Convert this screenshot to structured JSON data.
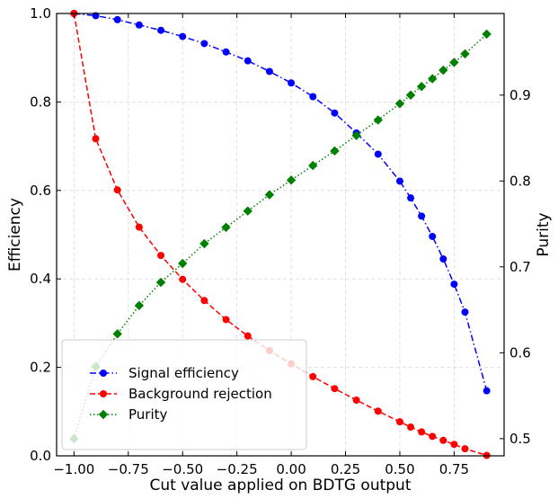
{
  "chart_data": {
    "type": "line",
    "xlabel": "Cut value applied on BDTG output",
    "ylabel": "Efficiency",
    "y2label": "Purity",
    "xlim": [
      -1.08,
      0.98
    ],
    "ylim": [
      0.0,
      1.0
    ],
    "y2lim": [
      0.48,
      0.995
    ],
    "grid": true,
    "legend_position": "lower-left",
    "x_ticks": [
      -1.0,
      -0.75,
      -0.5,
      -0.25,
      0.0,
      0.25,
      0.5,
      0.75
    ],
    "x_tick_labels": [
      "−1.00",
      "−0.75",
      "−0.50",
      "−0.25",
      "0.00",
      "0.25",
      "0.50",
      "0.75"
    ],
    "y_ticks": [
      0.0,
      0.2,
      0.4,
      0.6,
      0.8,
      1.0
    ],
    "y_tick_labels": [
      "0.0",
      "0.2",
      "0.4",
      "0.6",
      "0.8",
      "1.0"
    ],
    "y2_ticks": [
      0.5,
      0.6,
      0.7,
      0.8,
      0.9
    ],
    "y2_tick_labels": [
      "0.5",
      "0.6",
      "0.7",
      "0.8",
      "0.9"
    ],
    "series": [
      {
        "name": "Signal efficiency",
        "axis": "left",
        "color": "#0000ff",
        "line_style": "dashdot",
        "marker": "circle",
        "x": [
          -1.0,
          -0.9,
          -0.8,
          -0.7,
          -0.6,
          -0.5,
          -0.4,
          -0.3,
          -0.2,
          -0.1,
          0.0,
          0.1,
          0.2,
          0.3,
          0.4,
          0.5,
          0.55,
          0.6,
          0.65,
          0.7,
          0.75,
          0.8,
          0.9
        ],
        "values": [
          1.0,
          0.995,
          0.986,
          0.974,
          0.962,
          0.948,
          0.932,
          0.913,
          0.893,
          0.869,
          0.843,
          0.812,
          0.775,
          0.73,
          0.682,
          0.621,
          0.583,
          0.542,
          0.496,
          0.445,
          0.388,
          0.325,
          0.147
        ]
      },
      {
        "name": "Background rejection",
        "axis": "left",
        "color": "#ff0000",
        "line_style": "dashed",
        "marker": "circle",
        "x": [
          -1.0,
          -0.9,
          -0.8,
          -0.7,
          -0.6,
          -0.5,
          -0.4,
          -0.3,
          -0.2,
          -0.1,
          0.0,
          0.1,
          0.2,
          0.3,
          0.4,
          0.5,
          0.55,
          0.6,
          0.65,
          0.7,
          0.75,
          0.8,
          0.9
        ],
        "values": [
          1.0,
          0.717,
          0.601,
          0.517,
          0.453,
          0.399,
          0.351,
          0.308,
          0.271,
          0.238,
          0.208,
          0.179,
          0.152,
          0.126,
          0.101,
          0.077,
          0.065,
          0.054,
          0.044,
          0.035,
          0.026,
          0.016,
          0.001
        ]
      },
      {
        "name": "Purity",
        "axis": "right",
        "color": "#008000",
        "line_style": "dotted",
        "marker": "diamond",
        "x": [
          -1.0,
          -0.9,
          -0.8,
          -0.7,
          -0.6,
          -0.5,
          -0.4,
          -0.3,
          -0.2,
          -0.1,
          0.0,
          0.1,
          0.2,
          0.3,
          0.4,
          0.5,
          0.55,
          0.6,
          0.65,
          0.7,
          0.75,
          0.8,
          0.9
        ],
        "values": [
          0.5,
          0.584,
          0.622,
          0.655,
          0.682,
          0.704,
          0.727,
          0.746,
          0.765,
          0.784,
          0.801,
          0.818,
          0.835,
          0.853,
          0.871,
          0.89,
          0.9,
          0.91,
          0.919,
          0.929,
          0.938,
          0.948,
          0.971
        ]
      }
    ]
  }
}
